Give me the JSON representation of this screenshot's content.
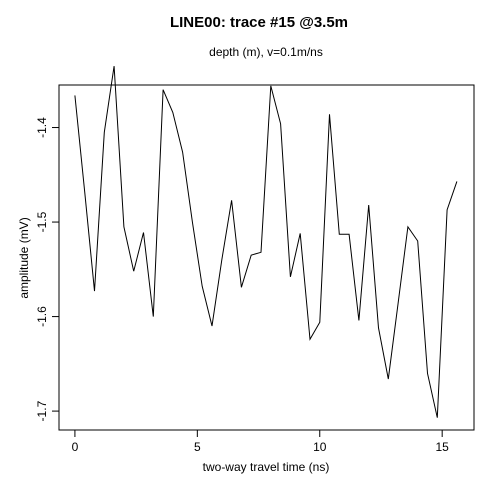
{
  "chart_data": {
    "type": "line",
    "title": "LINE00: trace #15 @3.5m",
    "subtitle": "depth (m),   v=0.1m/ns",
    "xlabel": "two-way travel time (ns)",
    "ylabel": "amplitude (mV)",
    "xlim": [
      -0.65,
      16.3
    ],
    "ylim": [
      -1.72,
      -1.355
    ],
    "xticks": [
      0,
      5,
      10,
      15
    ],
    "yticks": [
      -1.4,
      -1.5,
      -1.6,
      -1.7
    ],
    "grid": false,
    "legend": "none",
    "line_color": "#000000",
    "series": [
      {
        "x": [
          0.0,
          0.4,
          0.8,
          1.2,
          1.6,
          2.0,
          2.4,
          2.8,
          3.2,
          3.6,
          4.0,
          4.4,
          4.8,
          5.2,
          5.6,
          6.0,
          6.4,
          6.8,
          7.2,
          7.6,
          8.0,
          8.4,
          8.8,
          9.2,
          9.6,
          10.0,
          10.4,
          10.8,
          11.2,
          11.6,
          12.0,
          12.4,
          12.8,
          13.2,
          13.6,
          14.0,
          14.4,
          14.8,
          15.2,
          15.6
        ],
        "values": [
          -1.366,
          -1.468,
          -1.573,
          -1.405,
          -1.335,
          -1.505,
          -1.552,
          -1.511,
          -1.6,
          -1.36,
          -1.384,
          -1.426,
          -1.5,
          -1.568,
          -1.61,
          -1.54,
          -1.477,
          -1.569,
          -1.535,
          -1.532,
          -1.356,
          -1.396,
          -1.558,
          -1.512,
          -1.624,
          -1.606,
          -1.386,
          -1.513,
          -1.513,
          -1.604,
          -1.482,
          -1.612,
          -1.666,
          -1.586,
          -1.505,
          -1.52,
          -1.66,
          -1.707,
          -1.487,
          -1.457
        ]
      }
    ]
  }
}
